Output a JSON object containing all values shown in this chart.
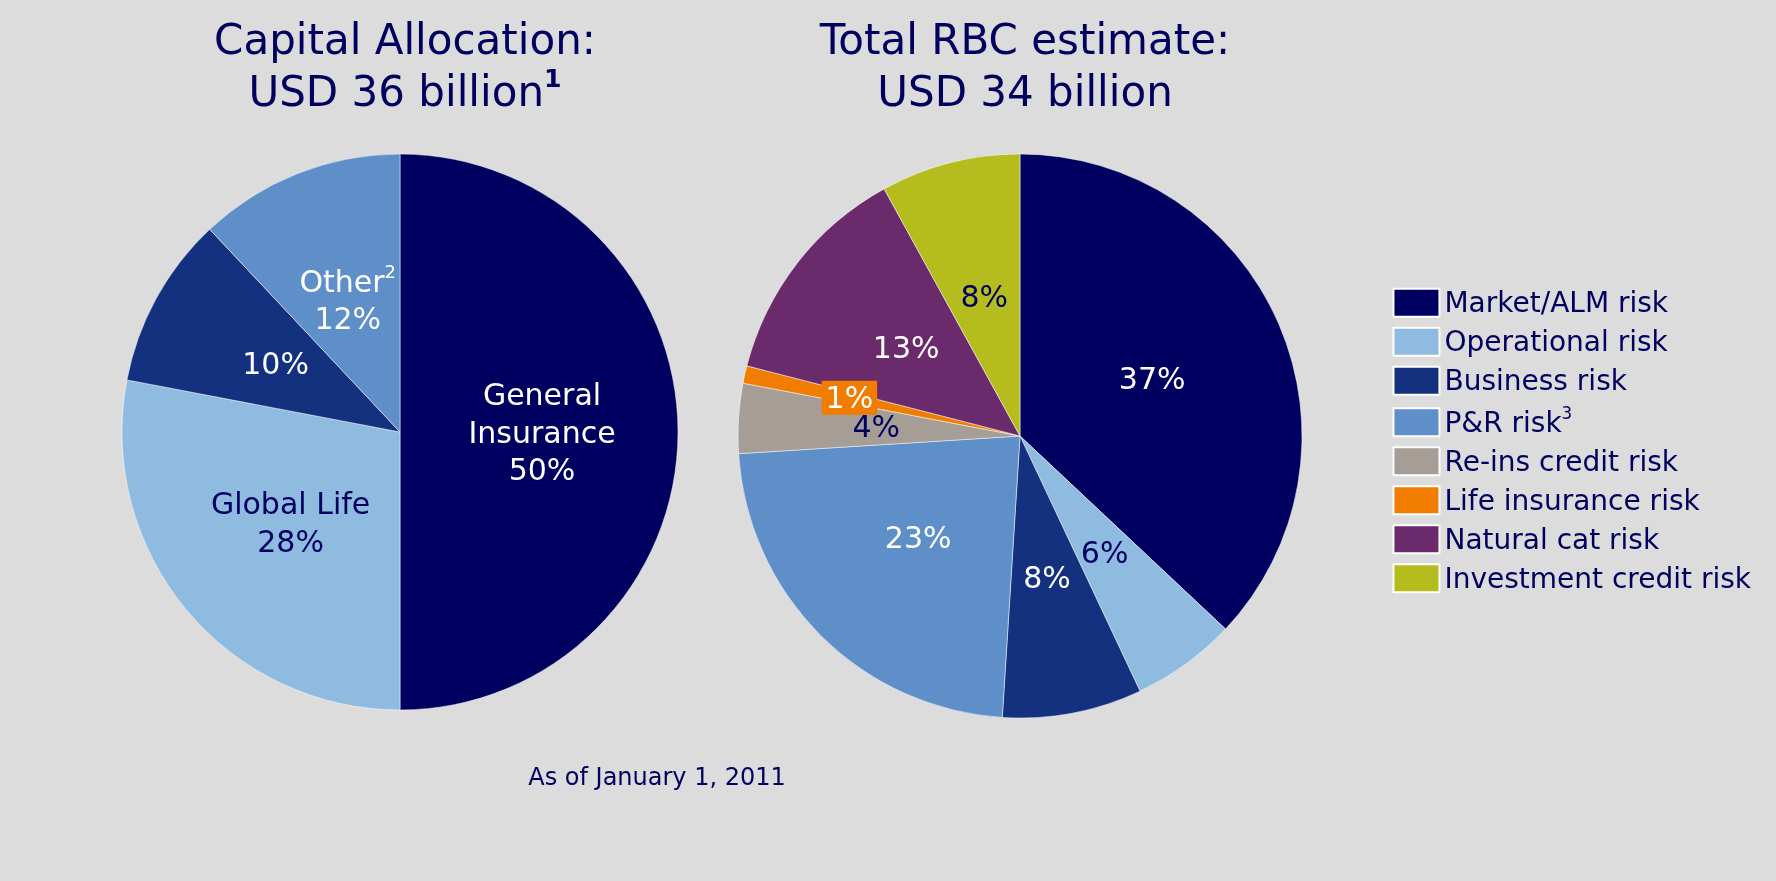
{
  "chart_data": [
    {
      "type": "pie",
      "title": "Capital Allocation:\nUSD 36 billion$^{1}$",
      "categories": [
        "General Insurance",
        "Global Life",
        null,
        "Other$^{2}$"
      ],
      "values": [
        50,
        28,
        10,
        12
      ],
      "value_labels": [
        "50%",
        "28%",
        "10%",
        "12%"
      ],
      "colors": [
        "#000060",
        "#8fbbe0",
        "#14317f",
        "#5f8fc8"
      ],
      "legend": false,
      "annotations": [
        "As of January 1, 2011"
      ]
    },
    {
      "type": "pie",
      "title": "Total RBC estimate:\nUSD 34 billion",
      "categories": [
        "Market/ALM risk",
        "Operational risk",
        "Business risk",
        "P&R risk$^{3}$",
        "Re-ins credit risk",
        "Life insurance risk",
        "Natural cat risk",
        "Investment credit risk"
      ],
      "values": [
        37,
        6,
        8,
        23,
        4,
        1,
        13,
        8
      ],
      "value_labels": [
        "37%",
        "6%",
        "8%",
        "23%",
        "4%",
        "1%",
        "13%",
        "8%"
      ],
      "colors": [
        "#000060",
        "#8fbbe0",
        "#14317f",
        "#5f8fc8",
        "#a59d96",
        "#f07d00",
        "#6b2a6b",
        "#b5bd1e"
      ],
      "legend": "right"
    }
  ]
}
